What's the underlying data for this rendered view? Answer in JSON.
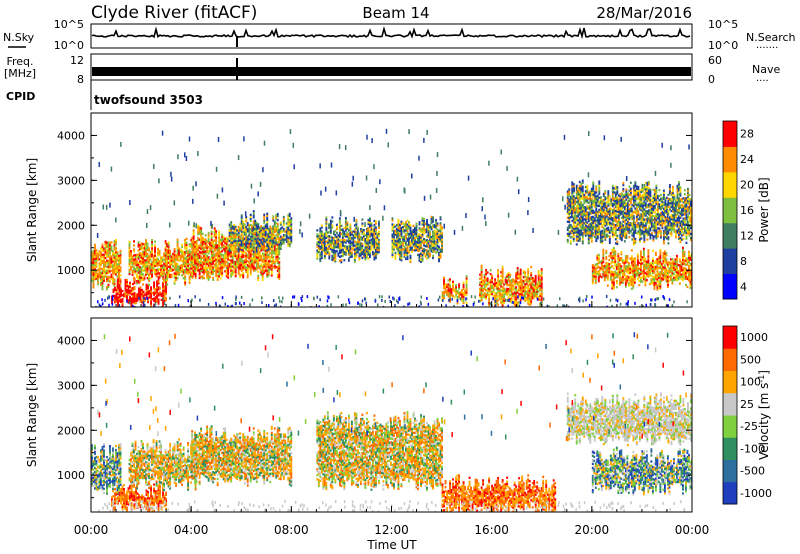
{
  "header": {
    "station": "Clyde River (fitACF)",
    "beam": "Beam 14",
    "date": "28/Mar/2016"
  },
  "nsky_panel": {
    "left_label": "N.Sky",
    "right_label": "N.Search",
    "left_ticks": [
      "10^5",
      "10^0"
    ],
    "right_ticks": [
      "10^5",
      "10^0"
    ]
  },
  "freq_panel": {
    "left_label_line1": "Freq.",
    "left_label_line2": "[MHz]",
    "left_ticks": [
      "12",
      "8"
    ],
    "right_label": "Nave",
    "right_ticks": [
      "60",
      "0"
    ]
  },
  "cpid_panel": {
    "label": "CPID",
    "program": "twofsound 3503"
  },
  "x_axis": {
    "label": "Time UT",
    "ticks": [
      "00:00",
      "04:00",
      "08:00",
      "12:00",
      "16:00",
      "20:00",
      "00:00"
    ]
  },
  "chart_data": [
    {
      "type": "heatmap",
      "name": "power",
      "xlabel": "Time UT",
      "ylabel": "Slant Range [km]",
      "xlim": [
        0,
        24
      ],
      "ylim": [
        180,
        4500
      ],
      "yticks": [
        1000,
        2000,
        3000,
        4000
      ],
      "colorbar": {
        "label": "Power [dB]",
        "tick_labels": [
          "4",
          "8",
          "12",
          "16",
          "20",
          "24",
          "28"
        ],
        "colors": [
          "#0000ff",
          "#1e3fa0",
          "#3f7f5f",
          "#7fbf3f",
          "#ffd700",
          "#ff8c00",
          "#ff0000"
        ]
      },
      "echo_regions": [
        {
          "t0": 0.0,
          "t1": 1.2,
          "r0": 700,
          "r1": 1500,
          "level": "high"
        },
        {
          "t0": 0.8,
          "t1": 3.0,
          "r0": 250,
          "r1": 650,
          "level": "very-high"
        },
        {
          "t0": 1.5,
          "t1": 4.2,
          "r0": 800,
          "r1": 1500,
          "level": "high"
        },
        {
          "t0": 4.0,
          "t1": 7.5,
          "r0": 900,
          "r1": 1800,
          "level": "high"
        },
        {
          "t0": 5.5,
          "t1": 8.0,
          "r0": 1500,
          "r1": 2100,
          "level": "medium"
        },
        {
          "t0": 9.0,
          "t1": 11.5,
          "r0": 1300,
          "r1": 2000,
          "level": "medium"
        },
        {
          "t0": 12.0,
          "t1": 14.0,
          "r0": 1300,
          "r1": 2000,
          "level": "medium"
        },
        {
          "t0": 14.0,
          "t1": 15.0,
          "r0": 300,
          "r1": 700,
          "level": "high"
        },
        {
          "t0": 15.5,
          "t1": 18.0,
          "r0": 300,
          "r1": 900,
          "level": "high"
        },
        {
          "t0": 19.0,
          "t1": 24.0,
          "r0": 1700,
          "r1": 2800,
          "level": "medium"
        },
        {
          "t0": 20.0,
          "t1": 24.0,
          "r0": 700,
          "r1": 1300,
          "level": "high"
        }
      ]
    },
    {
      "type": "heatmap",
      "name": "velocity",
      "xlabel": "Time UT",
      "ylabel": "Slant Range [km]",
      "xlim": [
        0,
        24
      ],
      "ylim": [
        180,
        4500
      ],
      "yticks": [
        1000,
        2000,
        3000,
        4000
      ],
      "colorbar": {
        "label": "Velocity [m s-1]",
        "label_base": "Velocity  [m s",
        "label_sup": "-1",
        "label_end": "]",
        "tick_labels": [
          "1000",
          "500",
          "100",
          "25",
          "-25",
          "-100",
          "-500",
          "-1000"
        ],
        "colors": [
          "#1f3fbf",
          "#2f6f9f",
          "#2f8f5f",
          "#7fcf3f",
          "#c8c8c8",
          "#ffa500",
          "#ff6a00",
          "#ff0000"
        ]
      },
      "echo_regions": [
        {
          "t0": 0.0,
          "t1": 1.2,
          "r0": 700,
          "r1": 1500,
          "level": "mixed"
        },
        {
          "t0": 0.8,
          "t1": 3.0,
          "r0": 250,
          "r1": 650,
          "level": "toward"
        },
        {
          "t0": 1.5,
          "t1": 4.2,
          "r0": 800,
          "r1": 1600,
          "level": "away"
        },
        {
          "t0": 4.0,
          "t1": 8.0,
          "r0": 900,
          "r1": 1900,
          "level": "away"
        },
        {
          "t0": 9.0,
          "t1": 14.0,
          "r0": 800,
          "r1": 2200,
          "level": "away"
        },
        {
          "t0": 14.0,
          "t1": 18.5,
          "r0": 250,
          "r1": 800,
          "level": "toward"
        },
        {
          "t0": 19.0,
          "t1": 24.0,
          "r0": 1800,
          "r1": 2600,
          "level": "slow"
        },
        {
          "t0": 20.0,
          "t1": 24.0,
          "r0": 700,
          "r1": 1400,
          "level": "mixed"
        }
      ]
    }
  ]
}
